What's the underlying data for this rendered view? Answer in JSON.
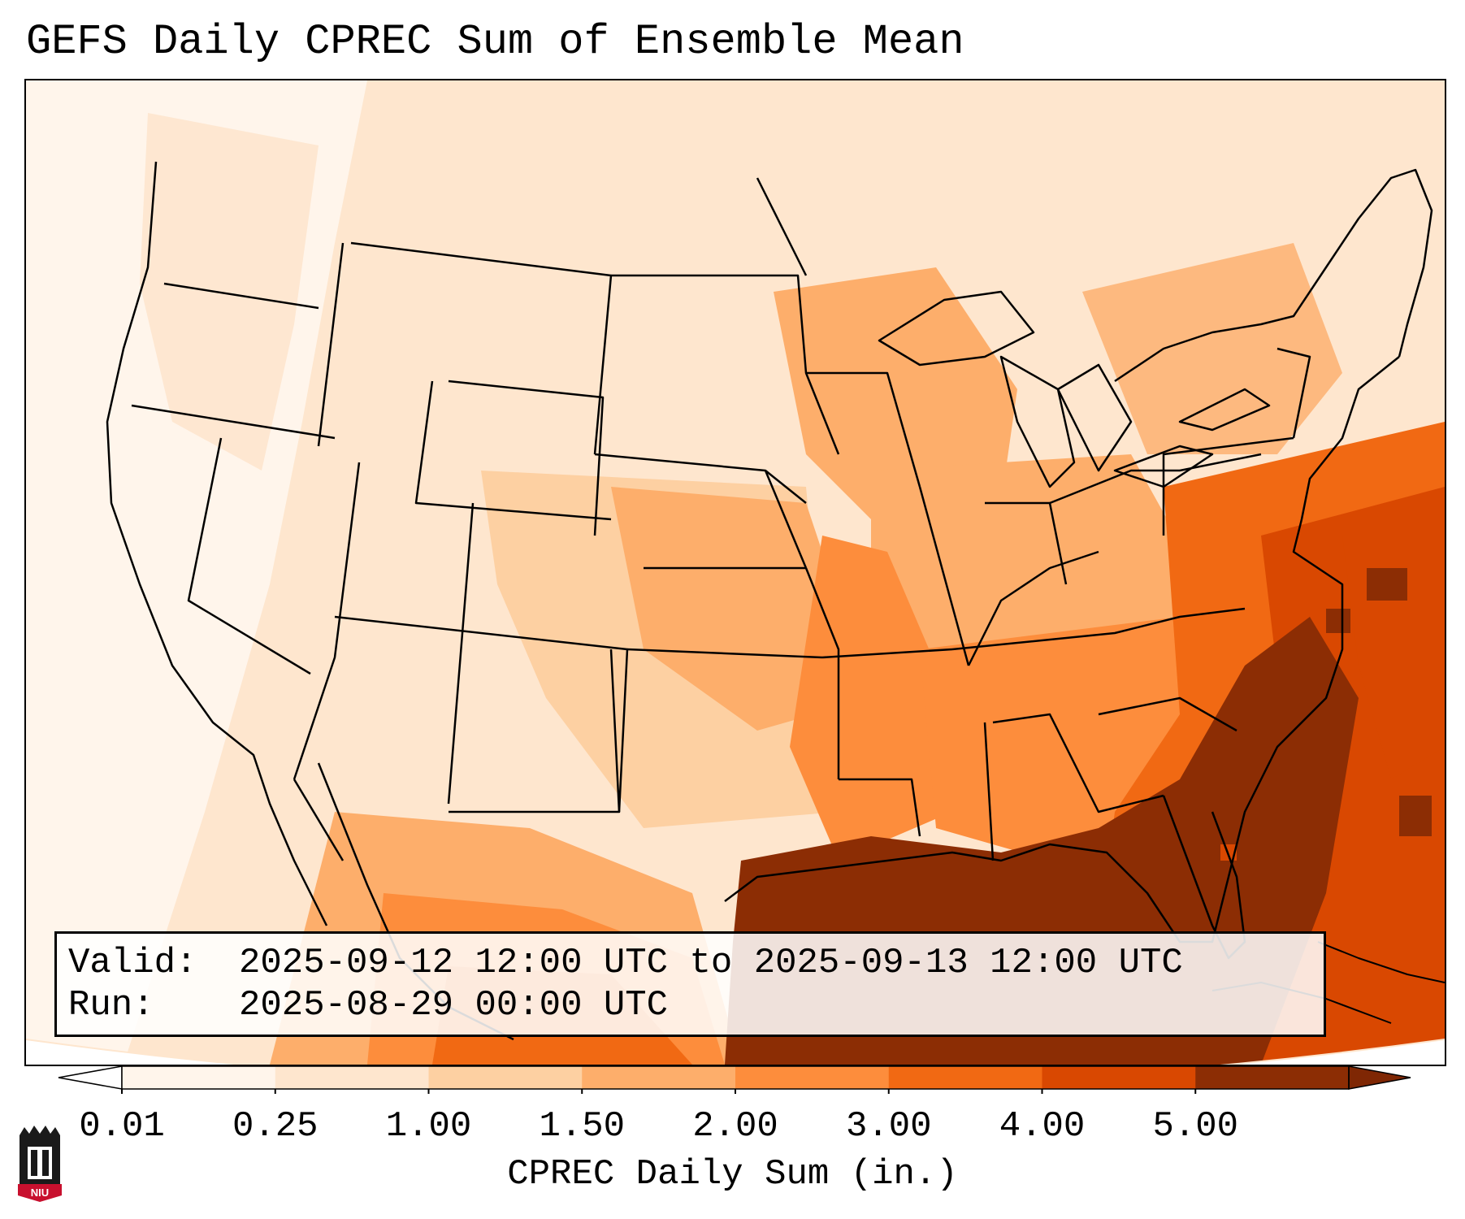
{
  "title": "GEFS Daily CPREC Sum of Ensemble Mean",
  "info": {
    "valid_label": "Valid:",
    "valid_value": "2025-09-12 12:00 UTC to 2025-09-13 12:00 UTC",
    "run_label": "Run:",
    "run_value": "2025-08-29 00:00 UTC"
  },
  "colorbar": {
    "label": "CPREC Daily Sum (in.)",
    "ticks": [
      "0.01",
      "0.25",
      "1.00",
      "1.50",
      "2.00",
      "3.00",
      "4.00",
      "5.00"
    ],
    "colors": [
      "#fff5eb",
      "#fee6ce",
      "#fdd0a2",
      "#fdae6b",
      "#fd8d3c",
      "#f16913",
      "#d94801",
      "#8c2d04"
    ],
    "under_color": "#ffffff",
    "over_color": "#7f2704"
  },
  "logo": {
    "text": "NIU",
    "colors": {
      "tower": "#1a1a1a",
      "banner": "#c8102e"
    }
  }
}
